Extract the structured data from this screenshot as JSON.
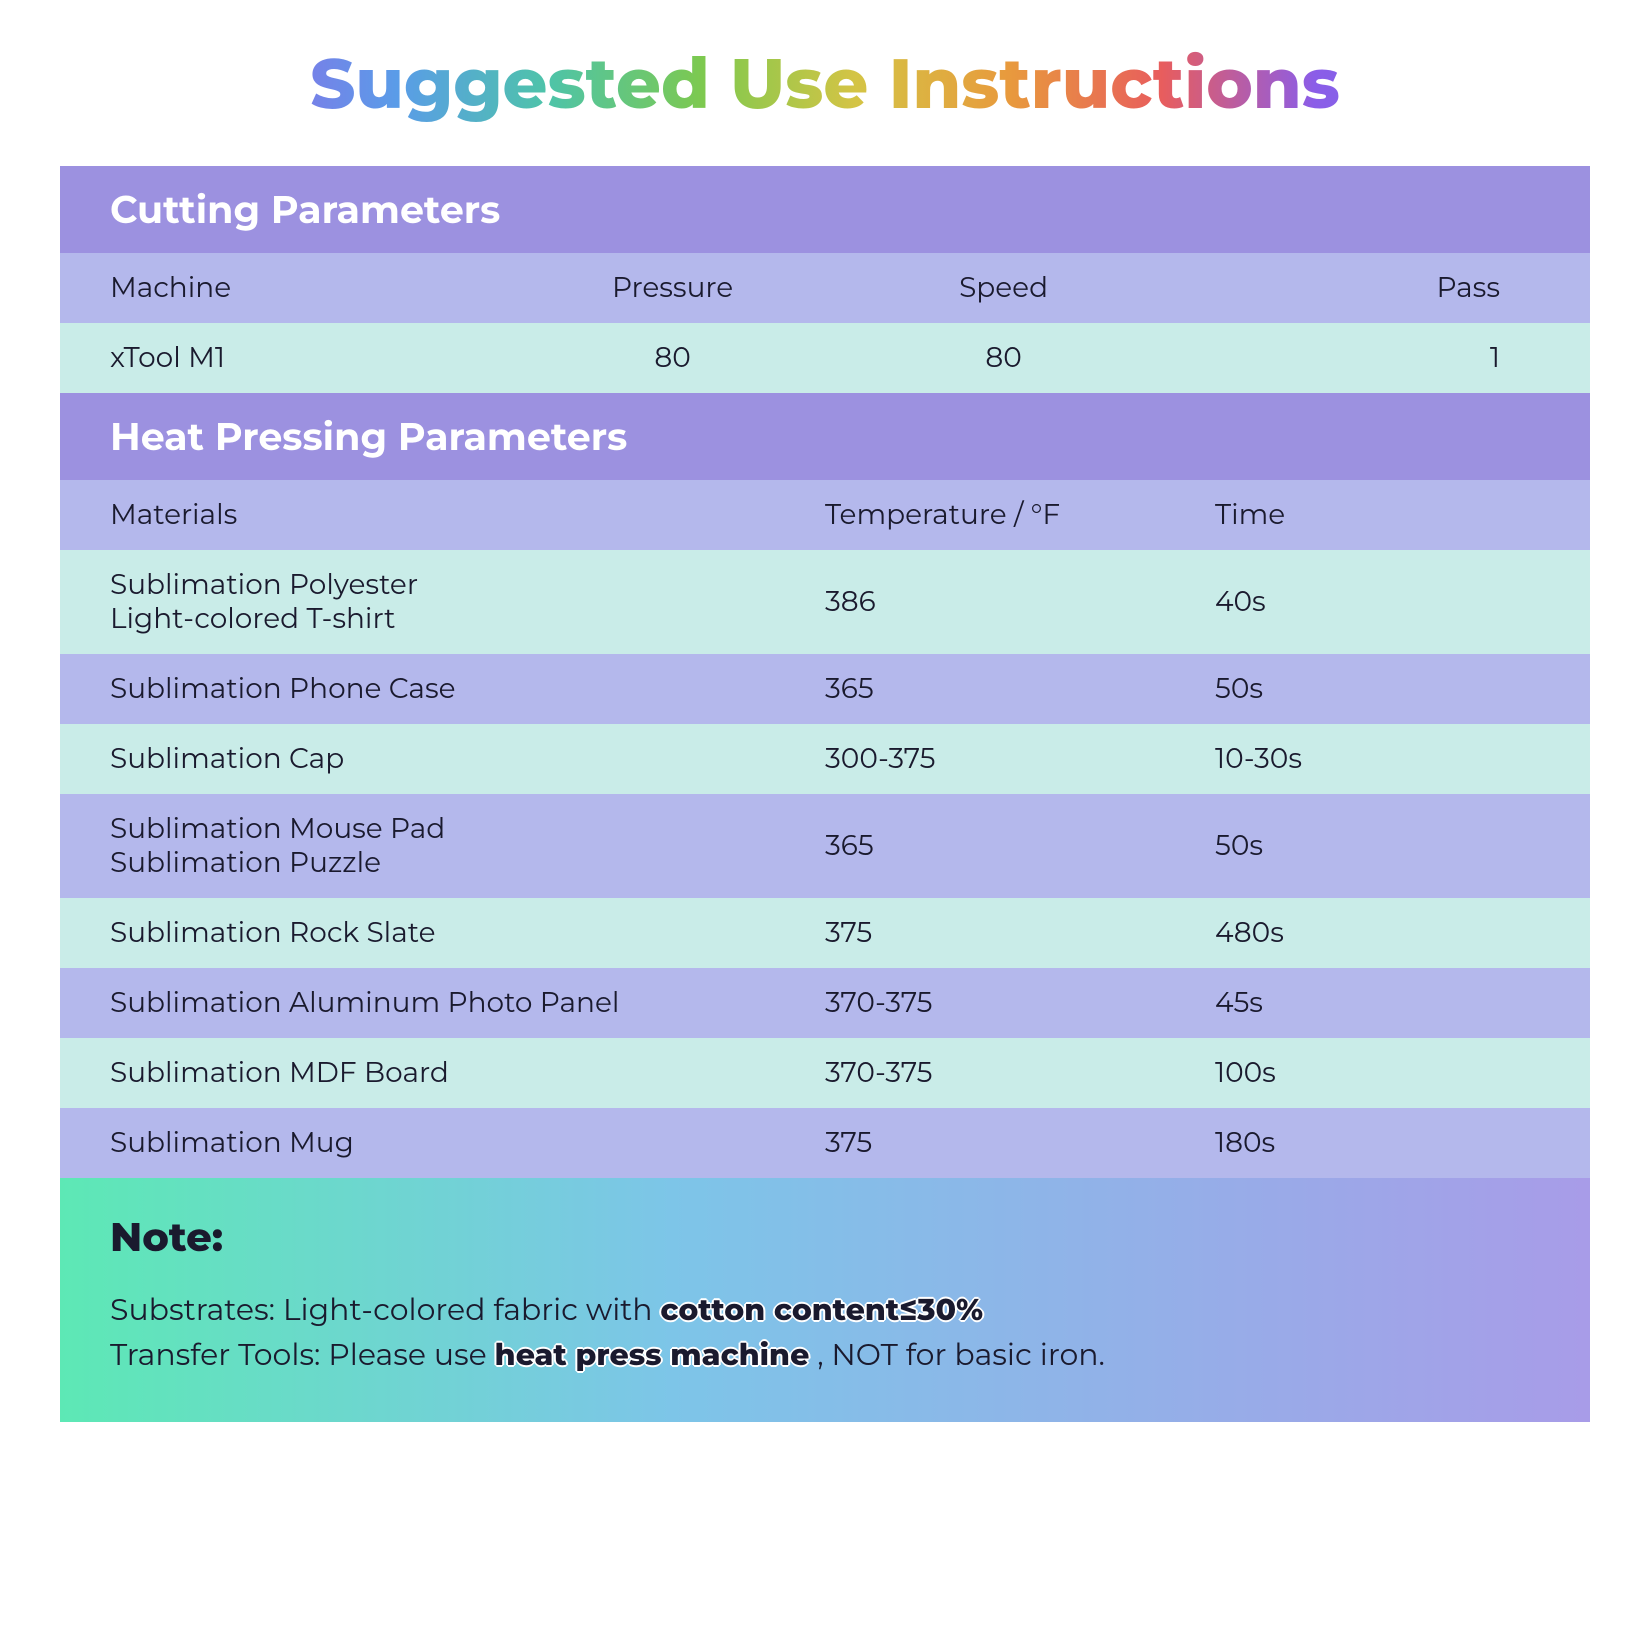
{
  "title": "Suggested Use Instructions",
  "colors": {
    "section_header_bg": "#9c91e0",
    "section_header_text": "#ffffff",
    "header_row_bg": "#b4b8ec",
    "row_light_bg": "#c9ece8",
    "row_blue_bg": "#b4b8ec",
    "text": "#1a1a2e",
    "note_gradient_start": "#5de8b5",
    "note_gradient_mid": "#7dc5e8",
    "note_gradient_end": "#a89ce8",
    "title_gradient": [
      "#e85db0",
      "#8b6de8",
      "#5a9ce8",
      "#4ec4a8",
      "#7dc94f",
      "#d4c445",
      "#e89a3d",
      "#e85d5d",
      "#8b5de8",
      "#5a7de8"
    ]
  },
  "typography": {
    "title_fontsize": 70,
    "title_fontweight": 800,
    "section_header_fontsize": 38,
    "section_header_fontweight": 700,
    "row_fontsize": 28,
    "note_title_fontsize": 40,
    "note_line_fontsize": 30
  },
  "cutting": {
    "section_title": "Cutting Parameters",
    "columns": [
      "Machine",
      "Pressure",
      "Speed",
      "Pass"
    ],
    "rows": [
      {
        "machine": "xTool M1",
        "pressure": "80",
        "speed": "80",
        "pass": "1",
        "bg": "light"
      }
    ]
  },
  "heat": {
    "section_title": "Heat Pressing Parameters",
    "columns": [
      "Materials",
      "Temperature / °F",
      "Time"
    ],
    "rows": [
      {
        "material": "Sublimation Polyester\nLight-colored T-shirt",
        "temp": "386",
        "time": "40s",
        "bg": "light"
      },
      {
        "material": "Sublimation Phone Case",
        "temp": "365",
        "time": "50s",
        "bg": "blue"
      },
      {
        "material": "Sublimation Cap",
        "temp": "300-375",
        "time": "10-30s",
        "bg": "light"
      },
      {
        "material": "Sublimation Mouse Pad\nSublimation Puzzle",
        "temp": "365",
        "time": "50s",
        "bg": "blue"
      },
      {
        "material": "Sublimation Rock Slate",
        "temp": "375",
        "time": "480s",
        "bg": "light"
      },
      {
        "material": "Sublimation Aluminum Photo Panel",
        "temp": "370-375",
        "time": "45s",
        "bg": "blue"
      },
      {
        "material": "Sublimation MDF Board",
        "temp": "370-375",
        "time": "100s",
        "bg": "light"
      },
      {
        "material": "Sublimation Mug",
        "temp": "375",
        "time": "180s",
        "bg": "blue"
      }
    ]
  },
  "note": {
    "title": "Note:",
    "line1_prefix": "Substrates: Light-colored fabric with ",
    "line1_bold": "cotton content≤30%",
    "line2_prefix": "Transfer Tools: Please use ",
    "line2_bold": "heat press machine",
    "line2_suffix": " , NOT for basic iron."
  }
}
